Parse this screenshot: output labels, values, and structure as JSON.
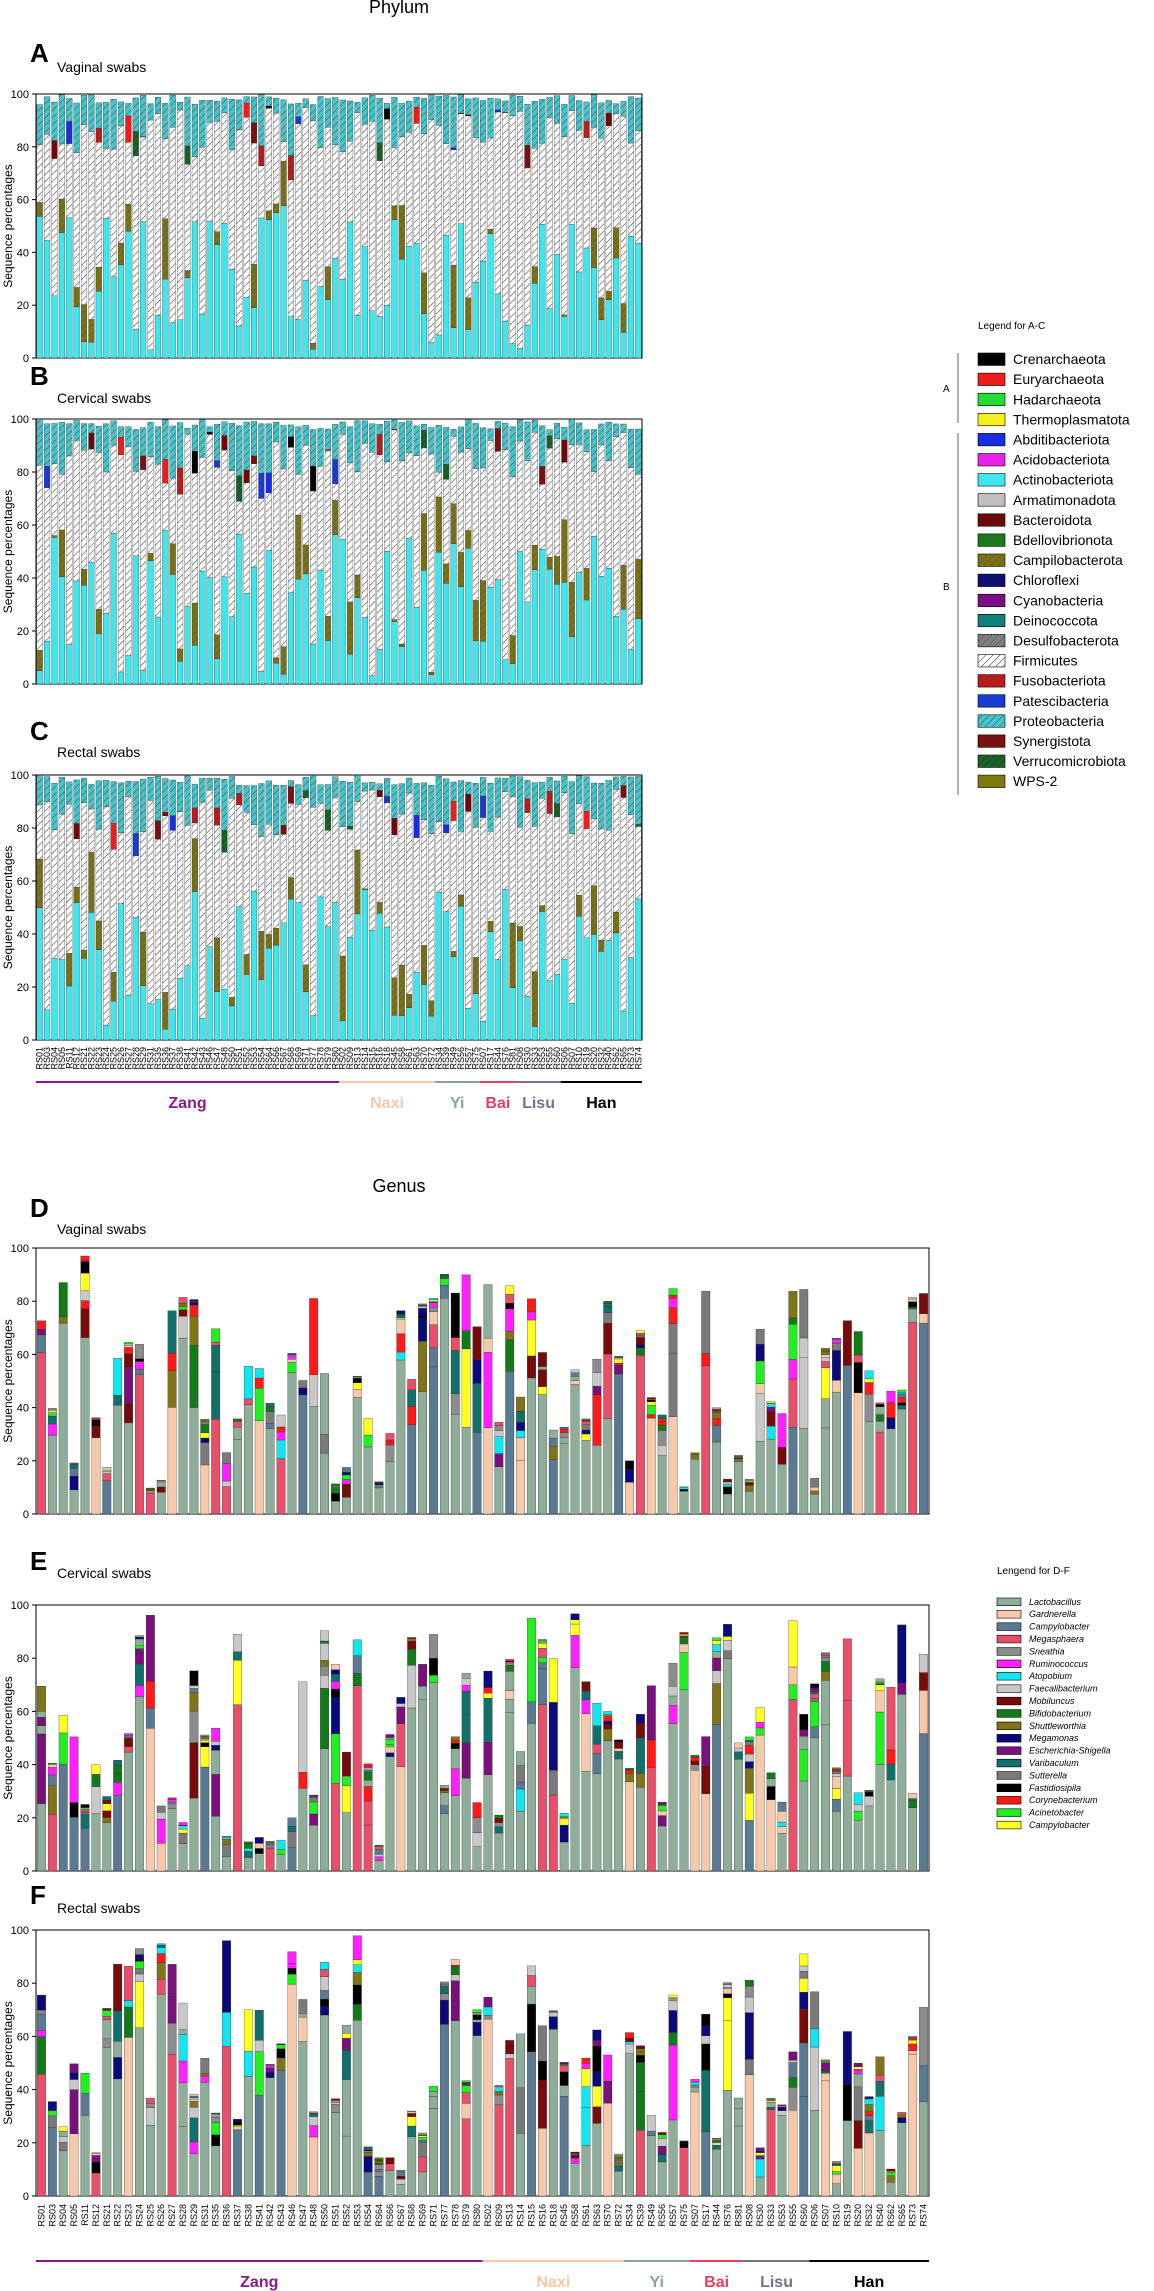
{
  "chart_data": [
    {
      "type": "bar",
      "figure": "Phylum",
      "stacked": true,
      "ylabel": "Sequence percentages",
      "ylim": [
        0,
        100
      ],
      "yticks": [
        0,
        20,
        40,
        60,
        80,
        100
      ],
      "panels": [
        {
          "letter": "A",
          "title": "Vaginal swabs"
        },
        {
          "letter": "B",
          "title": "Cervical swabs"
        },
        {
          "letter": "C",
          "title": "Rectal swabs"
        }
      ],
      "legend_title": "Legend for A-C",
      "legend_groups": [
        {
          "label": "A",
          "from": 0,
          "to": 3
        },
        {
          "label": "B",
          "from": 4,
          "to": 21
        }
      ],
      "legend": [
        {
          "name": "Crenarchaeota",
          "color": "#000000"
        },
        {
          "name": "Euryarchaeota",
          "color": "#ee1c1c"
        },
        {
          "name": "Hadarchaeota",
          "color": "#22dd33"
        },
        {
          "name": "Thermoplasmatota",
          "color": "#f4f020"
        },
        {
          "name": "Abditibacteriota",
          "color": "#1a2ee0"
        },
        {
          "name": "Acidobacteriota",
          "color": "#e824e8"
        },
        {
          "name": "Actinobacteriota",
          "color": "#3ee6ee"
        },
        {
          "name": "Armatimonadota",
          "color": "#c0c0c0"
        },
        {
          "name": "Bacteroidota",
          "color": "#6a0a0a"
        },
        {
          "name": "Bdellovibrionota",
          "color": "#1a7a1a"
        },
        {
          "name": "Campilobacterota",
          "color": "#7a7410",
          "hatch": true
        },
        {
          "name": "Chloroflexi",
          "color": "#101070"
        },
        {
          "name": "Cyanobacteria",
          "color": "#7a1088"
        },
        {
          "name": "Deinococcota",
          "color": "#12807a"
        },
        {
          "name": "Desulfobacterota",
          "color": "#808080",
          "hatch": true
        },
        {
          "name": "Firmicutes",
          "color": "#ffffff",
          "hatch": true
        },
        {
          "name": "Fusobacteriota",
          "color": "#c41414",
          "hatch": true
        },
        {
          "name": "Patescibacteria",
          "color": "#1a3ad8"
        },
        {
          "name": "Proteobacteria",
          "color": "#40c8d0",
          "hatch": true
        },
        {
          "name": "Synergistota",
          "color": "#7a1010"
        },
        {
          "name": "Verrucomicrobiota",
          "color": "#106020",
          "hatch": true
        },
        {
          "name": "WPS-2",
          "color": "#7f7a10"
        }
      ],
      "samples": [
        "RS01",
        "RS03",
        "RS04",
        "RS05",
        "RS11",
        "RS12",
        "RS21",
        "RS22",
        "RS23",
        "RS24",
        "RS25",
        "RS26",
        "RS27",
        "RS28",
        "RS29",
        "RS31",
        "RS35",
        "RS36",
        "RS37",
        "RS38",
        "RS41",
        "RS42",
        "RS43",
        "RS46",
        "RS47",
        "RS48",
        "RS50",
        "RS51",
        "RS52",
        "RS53",
        "RS54",
        "RS64",
        "RS66",
        "RS67",
        "RS68",
        "RS69",
        "RS71",
        "RS77",
        "RS78",
        "RS79",
        "RS80",
        "RS02",
        "RS09",
        "RS13",
        "RS14",
        "RS15",
        "RS16",
        "RS18",
        "RS45",
        "RS58",
        "RS61",
        "RS63",
        "RS70",
        "RS72",
        "RS34",
        "RS39",
        "RS49",
        "RS56",
        "RS57",
        "RS75",
        "RS07",
        "RS17",
        "RS44",
        "RS76",
        "RS81",
        "RS08",
        "RS30",
        "RS33",
        "RS53",
        "RS55",
        "RS60",
        "RS06",
        "RS07",
        "RS10",
        "RS19",
        "RS20",
        "RS32",
        "RS40",
        "RS62",
        "RS65",
        "RS73",
        "RS74"
      ],
      "groups": [
        {
          "name": "Zang",
          "color": "#8a1a8a",
          "count": 41
        },
        {
          "name": "Naxi",
          "color": "#f4c8a8",
          "count": 13
        },
        {
          "name": "Yi",
          "color": "#86a89a",
          "count": 6
        },
        {
          "name": "Bai",
          "color": "#e84060",
          "count": 5
        },
        {
          "name": "Lisu",
          "color": "#7a7090",
          "count": 6
        },
        {
          "name": "Han",
          "color": "#000000",
          "count": 11
        }
      ]
    },
    {
      "type": "bar",
      "figure": "Genus",
      "stacked": true,
      "ylabel": "Sequence percentages",
      "ylim": [
        0,
        100
      ],
      "yticks": [
        0,
        20,
        40,
        60,
        80,
        100
      ],
      "panels": [
        {
          "letter": "D",
          "title": "Vaginal swabs"
        },
        {
          "letter": "E",
          "title": "Cervical swabs"
        },
        {
          "letter": "F",
          "title": "Rectal swabs"
        }
      ],
      "legend_title": "Lengend for D-F",
      "legend": [
        {
          "name": "Lactobacillus",
          "color": "#8fae9a"
        },
        {
          "name": "Gardnerella",
          "color": "#f6c9aa"
        },
        {
          "name": "Campylobacter",
          "color": "#5a7a92"
        },
        {
          "name": "Megasphaera",
          "color": "#e8506a"
        },
        {
          "name": "Sneathia",
          "color": "#8c8c8c"
        },
        {
          "name": "Ruminococcus",
          "color": "#ff20ff"
        },
        {
          "name": "Atopobium",
          "color": "#10e6f0"
        },
        {
          "name": "Faecalibacterium",
          "color": "#c8c8c8"
        },
        {
          "name": "Mobiluncus",
          "color": "#780a0a"
        },
        {
          "name": "Bifidobacterium",
          "color": "#127a18"
        },
        {
          "name": "Shuttleworthia",
          "color": "#7f7418"
        },
        {
          "name": "Megamonas",
          "color": "#0a0a7a"
        },
        {
          "name": "Escherichia-Shigella",
          "color": "#7a107a"
        },
        {
          "name": "Varibaculum",
          "color": "#12706a"
        },
        {
          "name": "Sutterella",
          "color": "#7a7a7a"
        },
        {
          "name": "Fastidiosipila",
          "color": "#000000"
        },
        {
          "name": "Corynebacterium",
          "color": "#ff1a1a"
        },
        {
          "name": "Acinetobacter",
          "color": "#22ee22"
        },
        {
          "name": "Campylobacter",
          "color": "#ffff22"
        }
      ],
      "samples": [
        "RS01",
        "RS03",
        "RS04",
        "RS05",
        "RS11",
        "RS12",
        "RS21",
        "RS22",
        "RS23",
        "RS24",
        "RS25",
        "RS26",
        "RS27",
        "RS28",
        "RS29",
        "RS31",
        "RS35",
        "RS36",
        "RS37",
        "RS38",
        "RS41",
        "RS42",
        "RS43",
        "RS46",
        "RS47",
        "RS48",
        "RS50",
        "RS51",
        "RS52",
        "RS53",
        "RS54",
        "RS64",
        "RS66",
        "RS67",
        "RS68",
        "RS69",
        "RS71",
        "RS77",
        "RS78",
        "RS79",
        "RS80",
        "RS02",
        "RS09",
        "RS13",
        "RS14",
        "RS15",
        "RS16",
        "RS18",
        "RS45",
        "RS58",
        "RS61",
        "RS63",
        "RS70",
        "RS72",
        "RS34",
        "RS39",
        "RS49",
        "RS56",
        "RS57",
        "RS75",
        "RS07",
        "RS17",
        "RS44",
        "RS76",
        "RS81",
        "RS08",
        "RS30",
        "RS33",
        "RS53",
        "RS55",
        "RS60",
        "RS06",
        "RS07",
        "RS10",
        "RS19",
        "RS20",
        "RS32",
        "RS40",
        "RS62",
        "RS65",
        "RS73",
        "RS74"
      ],
      "groups": [
        {
          "name": "Zang",
          "color": "#8a1a8a",
          "count": 41
        },
        {
          "name": "Naxi",
          "color": "#f4c8a8",
          "count": 13
        },
        {
          "name": "Yi",
          "color": "#86a89a",
          "count": 6
        },
        {
          "name": "Bai",
          "color": "#e84060",
          "count": 5
        },
        {
          "name": "Lisu",
          "color": "#7a7090",
          "count": 6
        },
        {
          "name": "Han",
          "color": "#000000",
          "count": 11
        }
      ]
    }
  ]
}
